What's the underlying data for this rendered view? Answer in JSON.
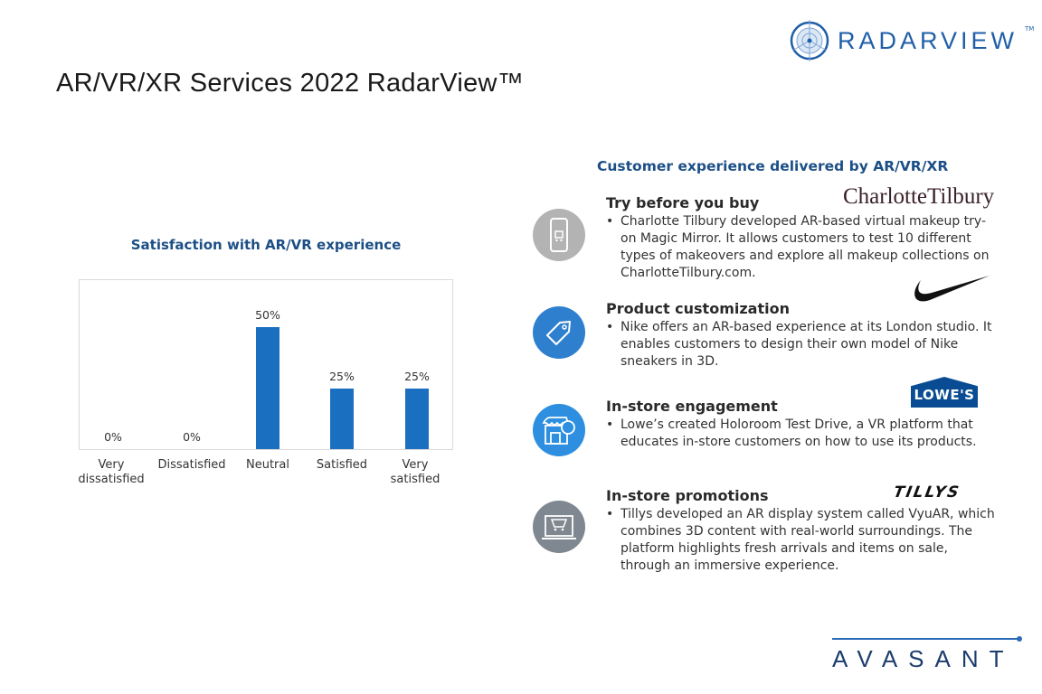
{
  "header": {
    "title": "AR/VR/XR Services 2022 RadarView™",
    "logo": "RADARVIEW",
    "logo_tm": "TM"
  },
  "chart_data": {
    "type": "bar",
    "title": "Satisfaction with AR/VR experience",
    "categories": [
      "Very dissatisfied",
      "Dissatisfied",
      "Neutral",
      "Satisfied",
      "Very satisfied"
    ],
    "values": [
      0,
      0,
      50,
      25,
      25
    ],
    "value_labels": [
      "0%",
      "0%",
      "50%",
      "25%",
      "25%"
    ],
    "unit": "%",
    "xlabel": "",
    "ylabel": "",
    "ylim": [
      0,
      65
    ],
    "grid": false,
    "color": "#1a6fc1"
  },
  "right": {
    "title": "Customer experience delivered by AR/VR/XR",
    "items": [
      {
        "heading": "Try before you buy",
        "text": "Charlotte Tilbury developed AR-based virtual makeup try-on Magic Mirror. It allows customers to test 10 different types of makeovers and explore all makeup collections on CharlotteTilbury.com.",
        "brand": "CharlotteTilbury",
        "icon": "phone-cart-icon",
        "color": "#b3b3b3"
      },
      {
        "heading": "Product customization",
        "text": "Nike offers an AR-based experience at its London studio. It enables customers to design their own model of Nike sneakers in 3D.",
        "brand": "Nike",
        "icon": "tag-icon",
        "color": "#2f7fcf"
      },
      {
        "heading": "In-store engagement",
        "text": "Lowe’s created Holoroom Test Drive, a VR platform that educates in-store customers on how to use its products.",
        "brand": "LOWE'S",
        "icon": "store-icon",
        "color": "#2e8fe0"
      },
      {
        "heading": "In-store promotions",
        "text": "Tillys developed an AR display system called VyuAR, which combines 3D content with real-world surroundings. The platform highlights fresh arrivals and items on sale, through an immersive experience.",
        "brand": "TILLYS",
        "icon": "laptop-cart-icon",
        "color": "#7f8790"
      }
    ]
  },
  "footer": {
    "logo": "AVASANT"
  }
}
